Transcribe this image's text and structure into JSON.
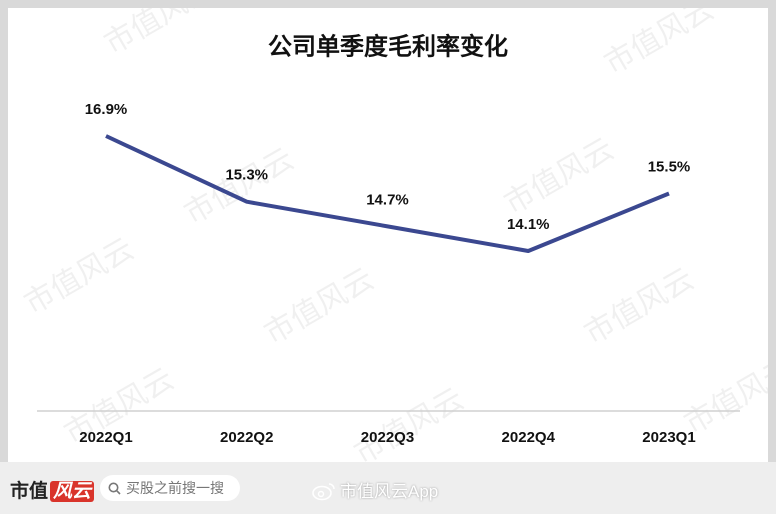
{
  "chart_data": {
    "type": "line",
    "title": "公司单季度毛利率变化",
    "categories": [
      "2022Q1",
      "2022Q2",
      "2022Q3",
      "2022Q4",
      "2023Q1"
    ],
    "values": [
      16.9,
      15.3,
      14.7,
      14.1,
      15.5
    ],
    "value_labels": [
      "16.9%",
      "15.3%",
      "14.7%",
      "14.1%",
      "15.5%"
    ],
    "color": "#3b4890"
  },
  "watermark": "市值风云",
  "footer": {
    "logo_left": "市值",
    "logo_right": "风云",
    "search": "买股之前搜一搜",
    "app": "市值风云App"
  }
}
